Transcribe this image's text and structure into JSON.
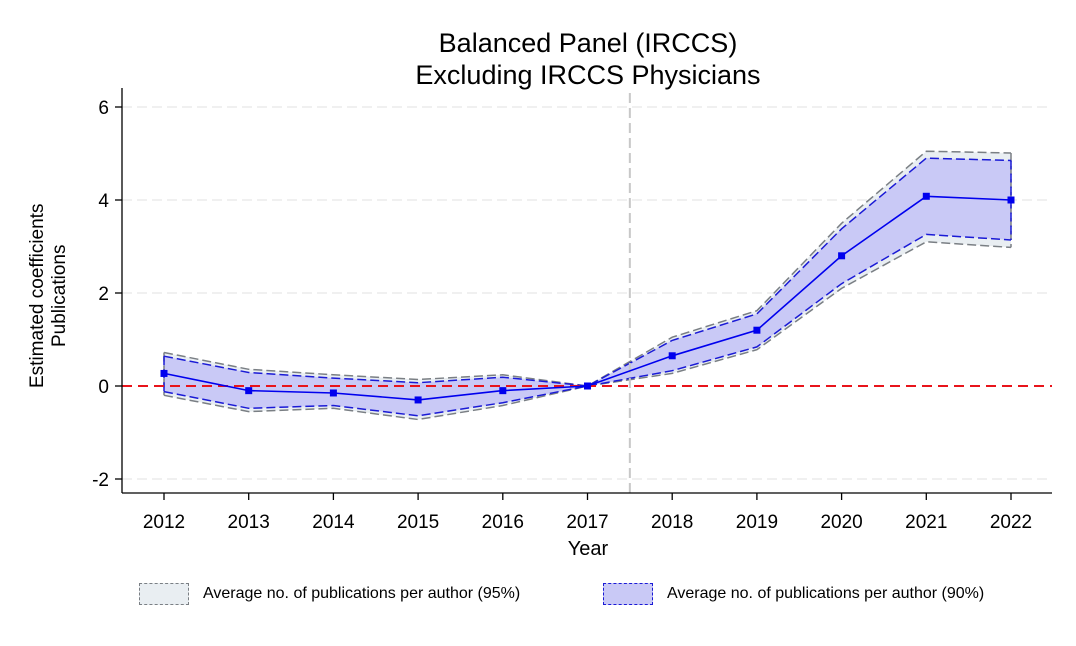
{
  "chart_data": {
    "type": "line",
    "title": [
      "Balanced Panel (IRCCS)",
      "Excluding IRCCS Physicians"
    ],
    "xlabel": "Year",
    "ylabel": [
      "Estimated coefficients",
      "Publications"
    ],
    "x": [
      2012,
      2013,
      2014,
      2015,
      2016,
      2017,
      2018,
      2019,
      2020,
      2021,
      2022
    ],
    "xticks": [
      "2012",
      "2013",
      "2014",
      "2015",
      "2016",
      "2017",
      "2018",
      "2019",
      "2020",
      "2021",
      "2022"
    ],
    "yticks": [
      "-2",
      "0",
      "2",
      "4",
      "6"
    ],
    "ylim": [
      -2.3,
      6.4
    ],
    "grid": true,
    "reference_lines": {
      "horizontal_y": 0,
      "horizontal_color": "#e8141b",
      "vertical_x": 2017.5,
      "vertical_color": "#c8c8c8"
    },
    "series": [
      {
        "name": "Average no. of publications per author (95%)",
        "kind": "band",
        "color": "#7a7f84",
        "fill": "#e9eef2",
        "lower": [
          -0.2,
          -0.55,
          -0.48,
          -0.72,
          -0.42,
          0.0,
          0.27,
          0.78,
          2.1,
          3.1,
          2.98
        ],
        "upper": [
          0.72,
          0.36,
          0.24,
          0.14,
          0.24,
          0.0,
          1.05,
          1.62,
          3.5,
          5.05,
          5.01
        ]
      },
      {
        "name": "Average no. of publications per author (90%)",
        "kind": "band",
        "color": "#1a1ad6",
        "fill": "#c9c9f6",
        "lower": [
          -0.12,
          -0.48,
          -0.42,
          -0.64,
          -0.36,
          0.0,
          0.33,
          0.84,
          2.2,
          3.26,
          3.14
        ],
        "upper": [
          0.64,
          0.29,
          0.17,
          0.07,
          0.19,
          0.0,
          0.98,
          1.55,
          3.38,
          4.9,
          4.85
        ]
      },
      {
        "kind": "point_estimate",
        "color": "#0000ee",
        "values": [
          0.27,
          -0.1,
          -0.15,
          -0.3,
          -0.1,
          0.0,
          0.65,
          1.2,
          2.8,
          4.08,
          4.0
        ]
      }
    ],
    "legend": {
      "placement": "bottom",
      "items": [
        "Average no. of publications per author (95%)",
        "Average no. of publications per author (90%)"
      ]
    }
  }
}
